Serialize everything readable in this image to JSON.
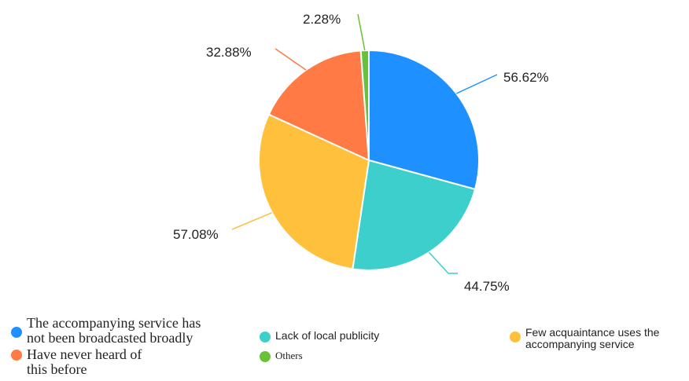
{
  "chart_data": {
    "type": "pie",
    "categories": [
      "The accompanying service has not been broadcasted broadly",
      "Lack of local publicity",
      "Few acquaintance uses the accompanying service",
      "Have never heard of this before",
      "Others"
    ],
    "values": [
      56.62,
      44.75,
      57.08,
      32.88,
      2.28
    ],
    "data_labels": [
      "56.62%",
      "44.75%",
      "57.08%",
      "32.88%",
      "2.28%"
    ],
    "colors": [
      "#1E90FF",
      "#3CCFCB",
      "#FFC13B",
      "#FF7A45",
      "#67C23A"
    ],
    "legend_position": "bottom"
  },
  "legend": {
    "item1": "The accompanying service has\nnot been broadcasted broadly",
    "item2": "Have never heard of\nthis before",
    "item3": "Lack of local publicity",
    "item4": "Others",
    "item5": "Few acquaintance uses the\naccompanying service"
  }
}
